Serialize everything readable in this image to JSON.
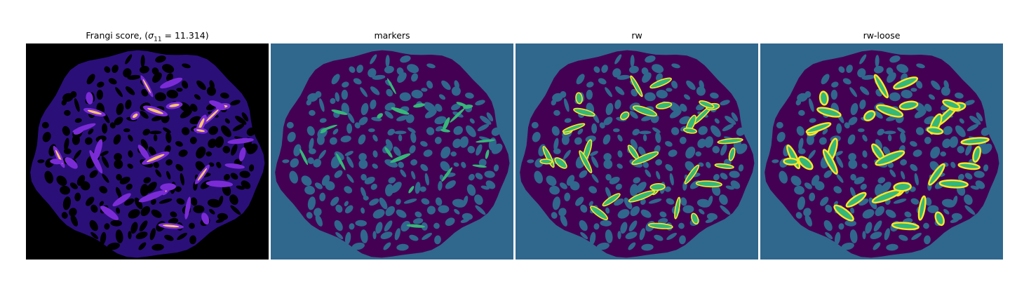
{
  "panels": [
    {
      "title_prefix": "Frangi score, (",
      "sigma_symbol": "σ",
      "sigma_subscript": "11",
      "title_suffix": " = 11.314)",
      "kind": "frangi"
    },
    {
      "title": "markers",
      "kind": "markers"
    },
    {
      "title": "rw",
      "kind": "rw"
    },
    {
      "title": "rw-loose",
      "kind": "rw-loose"
    }
  ],
  "colors": {
    "frangi_background": "#000000",
    "frangi_tissue": "#2a0f79",
    "frangi_ridge_low": "#7b2bd6",
    "frangi_ridge_high": "#f9c46b",
    "seg_background": "#30678d",
    "seg_tissue": "#440154",
    "marker_green": "#35b779",
    "rw_yellow": "#fde725"
  }
}
